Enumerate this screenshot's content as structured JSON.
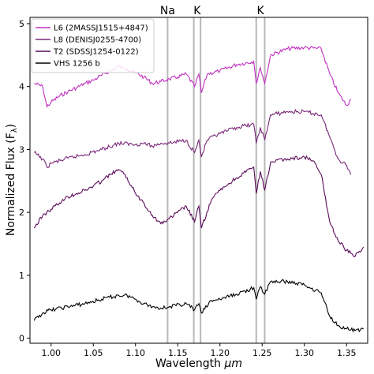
{
  "chart_data": {
    "type": "line",
    "xlabel": "Wavelength ",
    "xlabel_unit": "μm",
    "ylabel": "Normalized Flux (F",
    "ylabel_sub": "λ",
    "ylabel_end": ")",
    "xlim": [
      0.975,
      1.375
    ],
    "ylim": [
      -0.08,
      5.1
    ],
    "xticks": [
      1.0,
      1.05,
      1.1,
      1.15,
      1.2,
      1.25,
      1.3,
      1.35
    ],
    "xtick_labels": [
      "1.00",
      "1.05",
      "1.10",
      "1.15",
      "1.20",
      "1.25",
      "1.30",
      "1.35"
    ],
    "yticks": [
      0,
      1,
      2,
      3,
      4,
      5
    ],
    "ytick_labels": [
      "0",
      "1",
      "2",
      "3",
      "4",
      "5"
    ],
    "grid": false,
    "legend_position": "top-left",
    "line_markers": [
      {
        "label": "Na",
        "x": [
          1.138
        ]
      },
      {
        "label": "K",
        "x": [
          1.169,
          1.177
        ]
      },
      {
        "label": "K",
        "x": [
          1.243,
          1.253
        ]
      }
    ],
    "series": [
      {
        "name": "L6 (2MASSJ1515+4847)",
        "color": "#c030c0",
        "points": [
          [
            0.98,
            4.05
          ],
          [
            0.99,
            4.0
          ],
          [
            0.995,
            3.68
          ],
          [
            1.0,
            3.75
          ],
          [
            1.01,
            3.85
          ],
          [
            1.02,
            3.92
          ],
          [
            1.03,
            3.98
          ],
          [
            1.04,
            4.05
          ],
          [
            1.05,
            4.1
          ],
          [
            1.06,
            4.18
          ],
          [
            1.07,
            4.25
          ],
          [
            1.08,
            4.32
          ],
          [
            1.09,
            4.28
          ],
          [
            1.1,
            4.22
          ],
          [
            1.11,
            4.15
          ],
          [
            1.12,
            4.05
          ],
          [
            1.13,
            4.08
          ],
          [
            1.14,
            4.12
          ],
          [
            1.15,
            4.15
          ],
          [
            1.16,
            4.2
          ],
          [
            1.17,
            4.0
          ],
          [
            1.175,
            4.2
          ],
          [
            1.178,
            3.9
          ],
          [
            1.185,
            4.2
          ],
          [
            1.2,
            4.25
          ],
          [
            1.22,
            4.35
          ],
          [
            1.24,
            4.4
          ],
          [
            1.243,
            4.05
          ],
          [
            1.248,
            4.3
          ],
          [
            1.253,
            4.05
          ],
          [
            1.26,
            4.5
          ],
          [
            1.28,
            4.6
          ],
          [
            1.3,
            4.62
          ],
          [
            1.32,
            4.6
          ],
          [
            1.33,
            4.2
          ],
          [
            1.34,
            3.9
          ],
          [
            1.35,
            3.7
          ],
          [
            1.355,
            3.8
          ]
        ]
      },
      {
        "name": "L8 (DENISJ0255-4700)",
        "color": "#7a287a",
        "points": [
          [
            0.98,
            2.95
          ],
          [
            0.99,
            2.85
          ],
          [
            0.995,
            2.72
          ],
          [
            1.0,
            2.78
          ],
          [
            1.02,
            2.86
          ],
          [
            1.04,
            2.92
          ],
          [
            1.06,
            3.0
          ],
          [
            1.08,
            3.1
          ],
          [
            1.1,
            3.08
          ],
          [
            1.11,
            3.1
          ],
          [
            1.12,
            3.05
          ],
          [
            1.13,
            3.1
          ],
          [
            1.14,
            3.1
          ],
          [
            1.16,
            3.15
          ],
          [
            1.17,
            2.95
          ],
          [
            1.175,
            3.15
          ],
          [
            1.178,
            2.88
          ],
          [
            1.185,
            3.15
          ],
          [
            1.2,
            3.25
          ],
          [
            1.22,
            3.35
          ],
          [
            1.24,
            3.4
          ],
          [
            1.243,
            3.1
          ],
          [
            1.248,
            3.35
          ],
          [
            1.253,
            3.15
          ],
          [
            1.26,
            3.55
          ],
          [
            1.28,
            3.6
          ],
          [
            1.3,
            3.6
          ],
          [
            1.32,
            3.55
          ],
          [
            1.33,
            3.2
          ],
          [
            1.34,
            2.85
          ],
          [
            1.35,
            2.75
          ],
          [
            1.355,
            2.6
          ]
        ]
      },
      {
        "name": "T2 (SDSSJ1254-0122)",
        "color": "#5a0a5a",
        "points": [
          [
            0.98,
            1.75
          ],
          [
            0.99,
            1.95
          ],
          [
            1.0,
            2.05
          ],
          [
            1.01,
            2.15
          ],
          [
            1.02,
            2.25
          ],
          [
            1.03,
            2.3
          ],
          [
            1.04,
            2.35
          ],
          [
            1.05,
            2.42
          ],
          [
            1.06,
            2.5
          ],
          [
            1.07,
            2.6
          ],
          [
            1.08,
            2.68
          ],
          [
            1.09,
            2.55
          ],
          [
            1.1,
            2.3
          ],
          [
            1.11,
            2.15
          ],
          [
            1.12,
            1.95
          ],
          [
            1.13,
            1.82
          ],
          [
            1.14,
            1.9
          ],
          [
            1.15,
            2.0
          ],
          [
            1.16,
            2.1
          ],
          [
            1.17,
            1.85
          ],
          [
            1.175,
            2.1
          ],
          [
            1.178,
            1.75
          ],
          [
            1.19,
            2.2
          ],
          [
            1.2,
            2.35
          ],
          [
            1.22,
            2.55
          ],
          [
            1.24,
            2.72
          ],
          [
            1.243,
            2.3
          ],
          [
            1.248,
            2.65
          ],
          [
            1.253,
            2.35
          ],
          [
            1.26,
            2.8
          ],
          [
            1.28,
            2.85
          ],
          [
            1.3,
            2.88
          ],
          [
            1.31,
            2.82
          ],
          [
            1.32,
            2.6
          ],
          [
            1.33,
            1.85
          ],
          [
            1.34,
            1.55
          ],
          [
            1.35,
            1.4
          ],
          [
            1.36,
            1.3
          ],
          [
            1.37,
            1.45
          ]
        ]
      },
      {
        "name": "VHS 1256 b",
        "color": "#000000",
        "points": [
          [
            0.98,
            0.28
          ],
          [
            0.99,
            0.4
          ],
          [
            1.0,
            0.45
          ],
          [
            1.02,
            0.5
          ],
          [
            1.04,
            0.55
          ],
          [
            1.06,
            0.62
          ],
          [
            1.08,
            0.68
          ],
          [
            1.09,
            0.68
          ],
          [
            1.1,
            0.62
          ],
          [
            1.11,
            0.55
          ],
          [
            1.12,
            0.5
          ],
          [
            1.13,
            0.48
          ],
          [
            1.14,
            0.5
          ],
          [
            1.16,
            0.55
          ],
          [
            1.17,
            0.45
          ],
          [
            1.175,
            0.55
          ],
          [
            1.178,
            0.4
          ],
          [
            1.19,
            0.6
          ],
          [
            1.2,
            0.62
          ],
          [
            1.22,
            0.7
          ],
          [
            1.24,
            0.8
          ],
          [
            1.243,
            0.62
          ],
          [
            1.248,
            0.82
          ],
          [
            1.253,
            0.7
          ],
          [
            1.26,
            0.9
          ],
          [
            1.28,
            0.9
          ],
          [
            1.3,
            0.85
          ],
          [
            1.32,
            0.72
          ],
          [
            1.33,
            0.35
          ],
          [
            1.34,
            0.2
          ],
          [
            1.35,
            0.15
          ],
          [
            1.36,
            0.12
          ],
          [
            1.37,
            0.15
          ]
        ]
      }
    ]
  }
}
